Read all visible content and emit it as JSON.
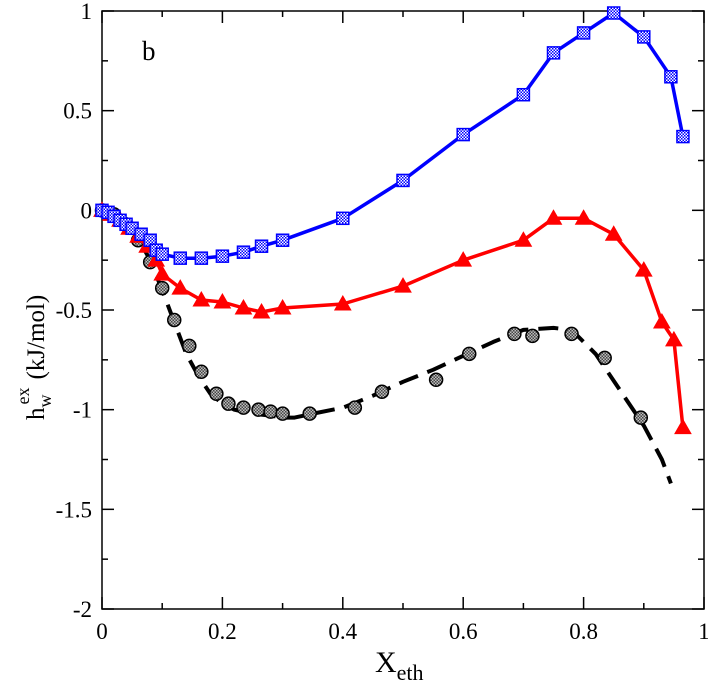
{
  "chart_data": {
    "type": "line",
    "panel_label": "b",
    "xlabel": {
      "main": "X",
      "sub": "eth"
    },
    "ylabel": {
      "main": "h",
      "sub": "w",
      "sup": "ex",
      "unit": "(kJ/mol)"
    },
    "xlim": [
      0,
      1
    ],
    "ylim": [
      -2,
      1
    ],
    "xticks": [
      0,
      0.2,
      0.4,
      0.6,
      0.8,
      1
    ],
    "xtick_labels": [
      "0",
      "0.2",
      "0.4",
      "0.6",
      "0.8",
      "1"
    ],
    "yticks": [
      -2,
      -1.5,
      -1,
      -0.5,
      0,
      0.5,
      1
    ],
    "ytick_labels": [
      "-2",
      "-1.5",
      "-1",
      "-0.5",
      "0",
      "0.5",
      "1"
    ],
    "series": [
      {
        "name": "blue squares",
        "color": "#0000ff",
        "marker": "square",
        "line": "solid",
        "x": [
          0,
          0.01,
          0.02,
          0.03,
          0.04,
          0.05,
          0.065,
          0.08,
          0.09,
          0.1,
          0.13,
          0.165,
          0.2,
          0.235,
          0.265,
          0.3,
          0.4,
          0.5,
          0.6,
          0.7,
          0.75,
          0.8,
          0.85,
          0.9,
          0.945,
          0.965
        ],
        "y": [
          0,
          -0.01,
          -0.03,
          -0.05,
          -0.07,
          -0.09,
          -0.12,
          -0.15,
          -0.2,
          -0.22,
          -0.24,
          -0.24,
          -0.23,
          -0.21,
          -0.18,
          -0.15,
          -0.04,
          0.15,
          0.38,
          0.58,
          0.79,
          0.89,
          0.99,
          0.87,
          0.67,
          0.37
        ]
      },
      {
        "name": "red triangles",
        "color": "#ff0000",
        "marker": "triangle",
        "line": "solid",
        "x": [
          0,
          0.015,
          0.03,
          0.045,
          0.06,
          0.075,
          0.09,
          0.1,
          0.13,
          0.165,
          0.2,
          0.235,
          0.265,
          0.3,
          0.4,
          0.5,
          0.6,
          0.7,
          0.75,
          0.8,
          0.85,
          0.9,
          0.93,
          0.95,
          0.965
        ],
        "y": [
          0,
          -0.02,
          -0.05,
          -0.09,
          -0.13,
          -0.18,
          -0.25,
          -0.32,
          -0.39,
          -0.45,
          -0.46,
          -0.49,
          -0.51,
          -0.49,
          -0.47,
          -0.38,
          -0.25,
          -0.15,
          -0.04,
          -0.04,
          -0.12,
          -0.3,
          -0.56,
          -0.65,
          -1.09
        ]
      },
      {
        "name": "black circles (points)",
        "color": "#000000",
        "marker": "circle",
        "line": "none",
        "x": [
          0,
          0.02,
          0.04,
          0.06,
          0.08,
          0.1,
          0.12,
          0.145,
          0.165,
          0.19,
          0.21,
          0.235,
          0.26,
          0.28,
          0.3,
          0.345,
          0.42,
          0.465,
          0.555,
          0.61,
          0.685,
          0.715,
          0.78,
          0.835,
          0.895
        ],
        "y": [
          0,
          -0.02,
          -0.07,
          -0.15,
          -0.26,
          -0.39,
          -0.55,
          -0.68,
          -0.81,
          -0.92,
          -0.97,
          -0.99,
          -1.0,
          -1.01,
          -1.02,
          -1.02,
          -0.99,
          -0.91,
          -0.85,
          -0.72,
          -0.62,
          -0.63,
          -0.62,
          -0.74,
          -1.04
        ]
      },
      {
        "name": "black dashed fit",
        "color": "#000000",
        "marker": "none",
        "line": "dashed",
        "x": [
          0,
          0.02,
          0.04,
          0.06,
          0.08,
          0.1,
          0.12,
          0.14,
          0.16,
          0.18,
          0.2,
          0.22,
          0.25,
          0.28,
          0.3,
          0.32,
          0.35,
          0.4,
          0.45,
          0.5,
          0.55,
          0.6,
          0.65,
          0.7,
          0.75,
          0.78,
          0.82,
          0.86,
          0.9,
          0.93,
          0.945
        ],
        "y": [
          0,
          -0.02,
          -0.06,
          -0.14,
          -0.25,
          -0.4,
          -0.56,
          -0.72,
          -0.83,
          -0.92,
          -0.97,
          -1.0,
          -1.02,
          -1.03,
          -1.04,
          -1.04,
          -1.02,
          -0.99,
          -0.93,
          -0.86,
          -0.8,
          -0.73,
          -0.66,
          -0.6,
          -0.59,
          -0.6,
          -0.72,
          -0.9,
          -1.08,
          -1.25,
          -1.37
        ]
      }
    ]
  }
}
